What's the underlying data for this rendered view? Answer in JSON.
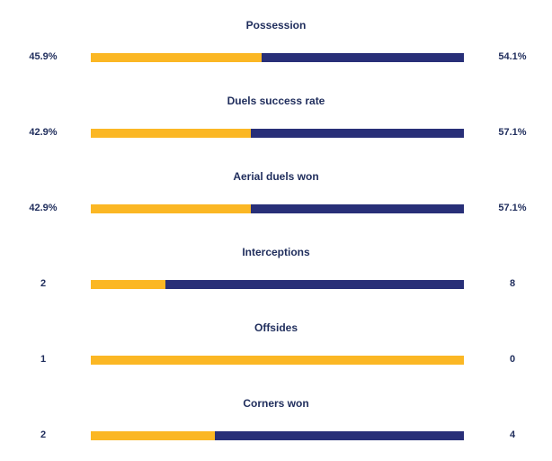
{
  "colors": {
    "home": "#fbb724",
    "away": "#282f78",
    "text": "#1f2d5c"
  },
  "stats": [
    {
      "title": "Possession",
      "home": "45.9%",
      "away": "54.1%",
      "home_share": 0.459
    },
    {
      "title": "Duels success rate",
      "home": "42.9%",
      "away": "57.1%",
      "home_share": 0.429
    },
    {
      "title": "Aerial duels won",
      "home": "42.9%",
      "away": "57.1%",
      "home_share": 0.429
    },
    {
      "title": "Interceptions",
      "home": "2",
      "away": "8",
      "home_share": 0.2
    },
    {
      "title": "Offsides",
      "home": "1",
      "away": "0",
      "home_share": 1.0
    },
    {
      "title": "Corners won",
      "home": "2",
      "away": "4",
      "home_share": 0.333
    }
  ]
}
